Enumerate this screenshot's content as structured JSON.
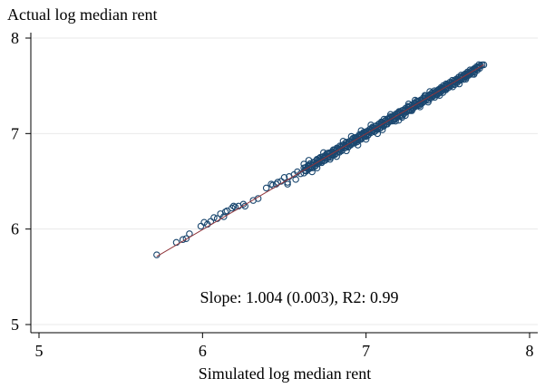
{
  "chart_data": {
    "type": "scatter",
    "title": "",
    "ylabel": "Actual log median rent",
    "xlabel": "Simulated log median rent",
    "xlim": [
      5,
      8
    ],
    "ylim": [
      5,
      8
    ],
    "xticks": [
      "5",
      "6",
      "7",
      "8"
    ],
    "yticks": [
      "5",
      "6",
      "7",
      "8"
    ],
    "grid": "horizontal",
    "annotation": "Slope: 1.004 (0.003), R2: 0.99",
    "fit_line": {
      "x0": 5.72,
      "x1": 7.72,
      "slope": 1.004,
      "intercept": -0.03
    },
    "marker_color": "#1a476f",
    "line_color": "#90353b",
    "series": [
      {
        "values": [
          [
            5.72,
            5.73
          ],
          [
            5.84,
            5.86
          ],
          [
            5.88,
            5.89
          ],
          [
            5.9,
            5.9
          ],
          [
            5.92,
            5.95
          ],
          [
            5.99,
            6.03
          ],
          [
            6.03,
            6.05
          ],
          [
            6.05,
            6.08
          ],
          [
            6.07,
            6.12
          ],
          [
            6.09,
            6.11
          ],
          [
            6.11,
            6.16
          ],
          [
            6.13,
            6.13
          ],
          [
            6.15,
            6.19
          ],
          [
            6.18,
            6.22
          ],
          [
            6.2,
            6.23
          ],
          [
            6.22,
            6.24
          ],
          [
            6.25,
            6.26
          ],
          [
            6.26,
            6.24
          ],
          [
            6.34,
            6.32
          ],
          [
            6.42,
            6.47
          ],
          [
            6.43,
            6.46
          ],
          [
            6.45,
            6.47
          ],
          [
            6.48,
            6.5
          ],
          [
            6.5,
            6.54
          ],
          [
            6.52,
            6.49
          ],
          [
            6.53,
            6.55
          ],
          [
            6.56,
            6.57
          ],
          [
            6.58,
            6.6
          ],
          [
            6.6,
            6.58
          ],
          [
            6.62,
            6.64
          ],
          [
            6.63,
            6.61
          ],
          [
            6.65,
            6.67
          ],
          [
            6.66,
            6.64
          ],
          [
            6.68,
            6.7
          ],
          [
            6.69,
            6.66
          ],
          [
            6.7,
            6.73
          ],
          [
            6.71,
            6.69
          ],
          [
            6.72,
            6.75
          ],
          [
            6.73,
            6.71
          ],
          [
            6.74,
            6.76
          ],
          [
            6.75,
            6.72
          ],
          [
            6.76,
            6.79
          ],
          [
            6.77,
            6.75
          ],
          [
            6.78,
            6.8
          ],
          [
            6.79,
            6.77
          ],
          [
            6.8,
            6.83
          ],
          [
            6.81,
            6.78
          ],
          [
            6.82,
            6.84
          ],
          [
            6.83,
            6.81
          ],
          [
            6.84,
            6.87
          ],
          [
            6.85,
            6.82
          ],
          [
            6.86,
            6.88
          ],
          [
            6.87,
            6.85
          ],
          [
            6.88,
            6.91
          ],
          [
            6.89,
            6.86
          ],
          [
            6.9,
            6.92
          ],
          [
            6.91,
            6.89
          ],
          [
            6.92,
            6.95
          ],
          [
            6.93,
            6.9
          ],
          [
            6.94,
            6.96
          ],
          [
            6.95,
            6.93
          ],
          [
            6.96,
            6.99
          ],
          [
            6.97,
            6.94
          ],
          [
            6.98,
            7.0
          ],
          [
            6.99,
            6.97
          ],
          [
            7.0,
            7.02
          ],
          [
            7.01,
            6.98
          ],
          [
            7.02,
            7.04
          ],
          [
            7.03,
            7.01
          ],
          [
            7.04,
            7.06
          ],
          [
            7.05,
            7.02
          ],
          [
            7.06,
            7.08
          ],
          [
            7.07,
            7.05
          ],
          [
            7.08,
            7.1
          ],
          [
            7.09,
            7.06
          ],
          [
            7.1,
            7.12
          ],
          [
            7.11,
            7.09
          ],
          [
            7.12,
            7.14
          ],
          [
            7.13,
            7.1
          ],
          [
            7.14,
            7.16
          ],
          [
            7.15,
            7.13
          ],
          [
            7.16,
            7.18
          ],
          [
            7.17,
            7.14
          ],
          [
            7.18,
            7.2
          ],
          [
            7.19,
            7.17
          ],
          [
            7.2,
            7.22
          ],
          [
            7.21,
            7.18
          ],
          [
            7.22,
            7.24
          ],
          [
            7.23,
            7.21
          ],
          [
            7.24,
            7.26
          ],
          [
            7.25,
            7.23
          ],
          [
            7.26,
            7.28
          ],
          [
            7.27,
            7.25
          ],
          [
            7.28,
            7.3
          ],
          [
            7.29,
            7.27
          ],
          [
            7.3,
            7.32
          ],
          [
            7.31,
            7.29
          ],
          [
            7.32,
            7.34
          ],
          [
            7.33,
            7.31
          ],
          [
            7.34,
            7.35
          ],
          [
            7.35,
            7.33
          ],
          [
            7.36,
            7.37
          ],
          [
            7.37,
            7.36
          ],
          [
            7.38,
            7.39
          ],
          [
            7.39,
            7.38
          ],
          [
            7.4,
            7.41
          ],
          [
            7.41,
            7.4
          ],
          [
            7.42,
            7.43
          ],
          [
            7.43,
            7.41
          ],
          [
            7.44,
            7.45
          ],
          [
            7.45,
            7.44
          ],
          [
            7.46,
            7.47
          ],
          [
            7.47,
            7.46
          ],
          [
            7.48,
            7.49
          ],
          [
            7.49,
            7.47
          ],
          [
            7.5,
            7.51
          ],
          [
            7.51,
            7.5
          ],
          [
            7.52,
            7.53
          ],
          [
            7.53,
            7.52
          ],
          [
            7.54,
            7.55
          ],
          [
            7.55,
            7.54
          ],
          [
            7.56,
            7.57
          ],
          [
            7.57,
            7.56
          ],
          [
            7.58,
            7.59
          ],
          [
            7.59,
            7.58
          ],
          [
            7.6,
            7.61
          ],
          [
            7.61,
            7.6
          ],
          [
            7.62,
            7.63
          ],
          [
            7.63,
            7.62
          ],
          [
            7.64,
            7.65
          ],
          [
            7.65,
            7.64
          ],
          [
            7.66,
            7.67
          ],
          [
            7.67,
            7.68
          ],
          [
            7.68,
            7.69
          ],
          [
            7.69,
            7.7
          ],
          [
            7.7,
            7.71
          ],
          [
            7.71,
            7.72
          ],
          [
            7.72,
            7.72
          ],
          [
            6.62,
            6.68
          ],
          [
            6.7,
            6.64
          ],
          [
            6.78,
            6.73
          ],
          [
            6.86,
            6.92
          ],
          [
            6.95,
            6.88
          ],
          [
            7.03,
            7.09
          ],
          [
            7.1,
            7.04
          ],
          [
            7.18,
            7.13
          ],
          [
            7.26,
            7.31
          ],
          [
            7.33,
            7.28
          ],
          [
            7.42,
            7.38
          ],
          [
            7.49,
            7.52
          ],
          [
            7.57,
            7.52
          ],
          [
            6.88,
            6.82
          ],
          [
            6.97,
            7.03
          ],
          [
            7.07,
            7.0
          ],
          [
            7.15,
            7.2
          ],
          [
            7.22,
            7.17
          ],
          [
            7.3,
            7.35
          ],
          [
            7.38,
            7.33
          ],
          [
            6.74,
            6.8
          ],
          [
            6.82,
            6.76
          ],
          [
            6.91,
            6.97
          ],
          [
            7.0,
            6.94
          ],
          [
            7.11,
            7.15
          ],
          [
            7.2,
            7.14
          ],
          [
            7.28,
            7.24
          ],
          [
            7.36,
            7.4
          ],
          [
            7.45,
            7.4
          ],
          [
            7.53,
            7.49
          ],
          [
            6.52,
            6.47
          ],
          [
            6.57,
            6.52
          ],
          [
            6.46,
            6.49
          ],
          [
            6.39,
            6.43
          ],
          [
            6.31,
            6.3
          ],
          [
            6.19,
            6.24
          ],
          [
            6.14,
            6.18
          ],
          [
            6.01,
            6.07
          ],
          [
            6.65,
            6.72
          ],
          [
            6.67,
            6.6
          ],
          [
            7.61,
            7.57
          ],
          [
            7.66,
            7.62
          ],
          [
            7.47,
            7.43
          ],
          [
            7.39,
            7.44
          ],
          [
            7.24,
            7.19
          ]
        ]
      }
    ]
  }
}
